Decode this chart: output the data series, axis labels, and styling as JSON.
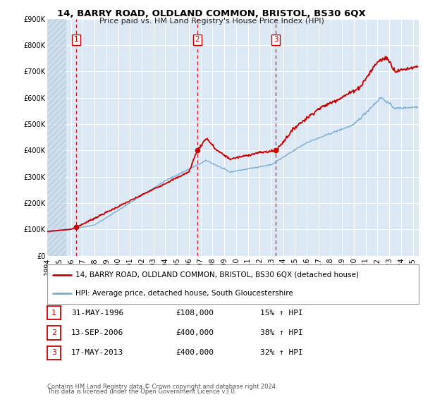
{
  "title": "14, BARRY ROAD, OLDLAND COMMON, BRISTOL, BS30 6QX",
  "subtitle": "Price paid vs. HM Land Registry's House Price Index (HPI)",
  "legend_line1": "14, BARRY ROAD, OLDLAND COMMON, BRISTOL, BS30 6QX (detached house)",
  "legend_line2": "HPI: Average price, detached house, South Gloucestershire",
  "footer_line1": "Contains HM Land Registry data © Crown copyright and database right 2024.",
  "footer_line2": "This data is licensed under the Open Government Licence v3.0.",
  "sale_points": [
    {
      "num": 1,
      "date": "31-MAY-1996",
      "price": 108000,
      "pct": "15%",
      "x": 1996.42
    },
    {
      "num": 2,
      "date": "13-SEP-2006",
      "price": 400000,
      "pct": "38%",
      "x": 2006.71
    },
    {
      "num": 3,
      "date": "17-MAY-2013",
      "price": 400000,
      "pct": "32%",
      "x": 2013.38
    }
  ],
  "table_rows": [
    {
      "num": 1,
      "date": "31-MAY-1996",
      "price": "£108,000",
      "pct": "15% ↑ HPI"
    },
    {
      "num": 2,
      "date": "13-SEP-2006",
      "price": "£400,000",
      "pct": "38% ↑ HPI"
    },
    {
      "num": 3,
      "date": "17-MAY-2013",
      "price": "£400,000",
      "pct": "32% ↑ HPI"
    }
  ],
  "red_color": "#cc0000",
  "blue_color": "#7aadcf",
  "bg_color": "#dce9f5",
  "plot_bg": "#dce9f5",
  "hatch_bg": "#c8d8e8",
  "grid_color": "#ffffff",
  "ylim": [
    0,
    900000
  ],
  "xlim_start": 1994.0,
  "xlim_end": 2025.5,
  "hatch_end": 1995.58,
  "yticks": [
    0,
    100000,
    200000,
    300000,
    400000,
    500000,
    600000,
    700000,
    800000,
    900000
  ],
  "ytick_labels": [
    "£0",
    "£100K",
    "£200K",
    "£300K",
    "£400K",
    "£500K",
    "£600K",
    "£700K",
    "£800K",
    "£900K"
  ],
  "xticks": [
    1994,
    1995,
    1996,
    1997,
    1998,
    1999,
    2000,
    2001,
    2002,
    2003,
    2004,
    2005,
    2006,
    2007,
    2008,
    2009,
    2010,
    2011,
    2012,
    2013,
    2014,
    2015,
    2016,
    2017,
    2018,
    2019,
    2020,
    2021,
    2022,
    2023,
    2024,
    2025
  ],
  "title_fontsize": 9.5,
  "subtitle_fontsize": 8.0,
  "tick_fontsize": 7.0,
  "legend_fontsize": 7.5,
  "table_fontsize": 8.0,
  "footer_fontsize": 6.0
}
